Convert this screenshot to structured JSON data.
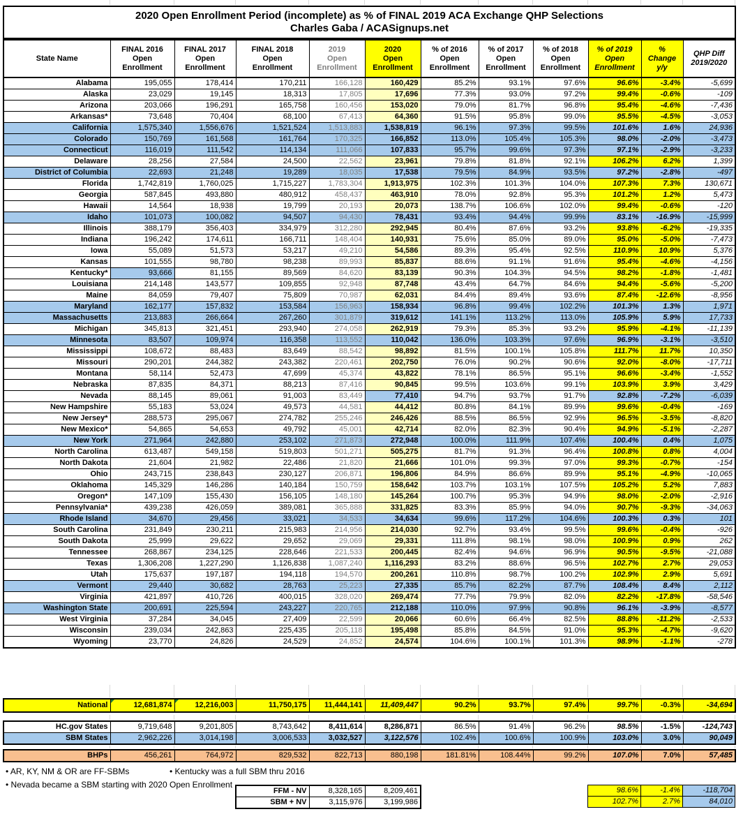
{
  "chart_data": {
    "type": "table",
    "title": "2020 Open Enrollment Period (incomplete) as % of FINAL 2019 ACA Exchange QHP Selections",
    "subtitle": "Charles Gaba / ACASignups.net",
    "columns": [
      "State Name",
      "FINAL 2016\nOpen\nEnrollment",
      "FINAL 2017\nOpen\nEnrollment",
      "FINAL 2018\nOpen\nEnrollment",
      "2019\nOpen\nEnrollment",
      "2020\nOpen\nEnrollment",
      "% of 2016\nOpen\nEnrollment",
      "% of 2017\nOpen\nEnrollment",
      "% of 2018\nOpen\nEnrollment",
      "% of 2019\nOpen\nEnrollment",
      "%\nChange\ny/y",
      "QHP Diff\n2019/2020"
    ],
    "rows": [
      {
        "name": "Alabama",
        "type": "ffm",
        "cells": [
          "195,055",
          "178,414",
          "170,211",
          "166,128",
          "160,429",
          "85.2%",
          "93.1%",
          "97.6%",
          "96.6%",
          "-3.4%",
          "-5,699"
        ]
      },
      {
        "name": "Alaska",
        "type": "ffm",
        "cells": [
          "23,029",
          "19,145",
          "18,313",
          "17,805",
          "17,696",
          "77.3%",
          "93.0%",
          "97.2%",
          "99.4%",
          "-0.6%",
          "-109"
        ]
      },
      {
        "name": "Arizona",
        "type": "ffm",
        "cells": [
          "203,066",
          "196,291",
          "165,758",
          "160,456",
          "153,020",
          "79.0%",
          "81.7%",
          "96.8%",
          "95.4%",
          "-4.6%",
          "-7,436"
        ]
      },
      {
        "name": "Arkansas*",
        "type": "ffm",
        "cells": [
          "73,648",
          "70,404",
          "68,100",
          "67,413",
          "64,360",
          "91.5%",
          "95.8%",
          "99.0%",
          "95.5%",
          "-4.5%",
          "-3,053"
        ]
      },
      {
        "name": "California",
        "type": "sbm",
        "cells": [
          "1,575,340",
          "1,556,676",
          "1,521,524",
          "1,513,883",
          "1,538,819",
          "96.1%",
          "97.3%",
          "99.5%",
          "101.6%",
          "1.6%",
          "24,936"
        ]
      },
      {
        "name": "Colorado",
        "type": "sbm",
        "cells": [
          "150,769",
          "161,568",
          "161,764",
          "170,325",
          "166,852",
          "113.0%",
          "105.4%",
          "105.3%",
          "98.0%",
          "-2.0%",
          "-3,473"
        ]
      },
      {
        "name": "Connecticut",
        "type": "sbm",
        "cells": [
          "116,019",
          "111,542",
          "114,134",
          "111,066",
          "107,833",
          "95.7%",
          "99.6%",
          "97.3%",
          "97.1%",
          "-2.9%",
          "-3,233"
        ]
      },
      {
        "name": "Delaware",
        "type": "ffm",
        "cells": [
          "28,256",
          "27,584",
          "24,500",
          "22,562",
          "23,961",
          "79.8%",
          "81.8%",
          "92.1%",
          "106.2%",
          "6.2%",
          "1,399"
        ]
      },
      {
        "name": "District of Columbia",
        "type": "sbm",
        "cells": [
          "22,693",
          "21,248",
          "19,289",
          "18,035",
          "17,538",
          "79.5%",
          "84.9%",
          "93.5%",
          "97.2%",
          "-2.8%",
          "-497"
        ]
      },
      {
        "name": "Florida",
        "type": "ffm",
        "cells": [
          "1,742,819",
          "1,760,025",
          "1,715,227",
          "1,783,304",
          "1,913,975",
          "102.3%",
          "101.3%",
          "104.0%",
          "107.3%",
          "7.3%",
          "130,671"
        ]
      },
      {
        "name": "Georgia",
        "type": "ffm",
        "cells": [
          "587,845",
          "493,880",
          "480,912",
          "458,437",
          "463,910",
          "78.0%",
          "92.8%",
          "95.3%",
          "101.2%",
          "1.2%",
          "5,473"
        ]
      },
      {
        "name": "Hawaii",
        "type": "ffm",
        "cells": [
          "14,564",
          "18,938",
          "19,799",
          "20,193",
          "20,073",
          "138.7%",
          "106.6%",
          "102.0%",
          "99.4%",
          "-0.6%",
          "-120"
        ]
      },
      {
        "name": "Idaho",
        "type": "sbm",
        "cells": [
          "101,073",
          "100,082",
          "94,507",
          "94,430",
          "78,431",
          "93.4%",
          "94.4%",
          "99.9%",
          "83.1%",
          "-16.9%",
          "-15,999"
        ]
      },
      {
        "name": "Illinois",
        "type": "ffm",
        "cells": [
          "388,179",
          "356,403",
          "334,979",
          "312,280",
          "292,945",
          "80.4%",
          "87.6%",
          "93.2%",
          "93.8%",
          "-6.2%",
          "-19,335"
        ]
      },
      {
        "name": "Indiana",
        "type": "ffm",
        "cells": [
          "196,242",
          "174,611",
          "166,711",
          "148,404",
          "140,931",
          "75.6%",
          "85.0%",
          "89.0%",
          "95.0%",
          "-5.0%",
          "-7,473"
        ]
      },
      {
        "name": "Iowa",
        "type": "ffm",
        "cells": [
          "55,089",
          "51,573",
          "53,217",
          "49,210",
          "54,586",
          "89.3%",
          "95.4%",
          "92.5%",
          "110.9%",
          "10.9%",
          "5,376"
        ]
      },
      {
        "name": "Kansas",
        "type": "ffm",
        "cells": [
          "101,555",
          "98,780",
          "98,238",
          "89,993",
          "85,837",
          "88.6%",
          "91.1%",
          "91.6%",
          "95.4%",
          "-4.6%",
          "-4,156"
        ]
      },
      {
        "name": "Kentucky*",
        "type": "ky",
        "cells": [
          "93,666",
          "81,155",
          "89,569",
          "84,620",
          "83,139",
          "90.3%",
          "104.3%",
          "94.5%",
          "98.2%",
          "-1.8%",
          "-1,481"
        ]
      },
      {
        "name": "Louisiana",
        "type": "ffm",
        "cells": [
          "214,148",
          "143,577",
          "109,855",
          "92,948",
          "87,748",
          "43.4%",
          "64.7%",
          "84.6%",
          "94.4%",
          "-5.6%",
          "-5,200"
        ]
      },
      {
        "name": "Maine",
        "type": "ffm",
        "cells": [
          "84,059",
          "79,407",
          "75,809",
          "70,987",
          "62,031",
          "84.4%",
          "89.4%",
          "93.6%",
          "87.4%",
          "-12.6%",
          "-8,956"
        ]
      },
      {
        "name": "Maryland",
        "type": "sbm",
        "cells": [
          "162,177",
          "157,832",
          "153,584",
          "156,963",
          "158,934",
          "96.8%",
          "99.4%",
          "102.2%",
          "101.3%",
          "1.3%",
          "1,971"
        ]
      },
      {
        "name": "Massachusetts",
        "type": "sbm",
        "cells": [
          "213,883",
          "266,664",
          "267,260",
          "301,879",
          "319,612",
          "141.1%",
          "113.2%",
          "113.0%",
          "105.9%",
          "5.9%",
          "17,733"
        ]
      },
      {
        "name": "Michigan",
        "type": "ffm",
        "cells": [
          "345,813",
          "321,451",
          "293,940",
          "274,058",
          "262,919",
          "79.3%",
          "85.3%",
          "93.2%",
          "95.9%",
          "-4.1%",
          "-11,139"
        ]
      },
      {
        "name": "Minnesota",
        "type": "sbm",
        "cells": [
          "83,507",
          "109,974",
          "116,358",
          "113,552",
          "110,042",
          "136.0%",
          "103.3%",
          "97.6%",
          "96.9%",
          "-3.1%",
          "-3,510"
        ]
      },
      {
        "name": "Mississippi",
        "type": "ffm",
        "cells": [
          "108,672",
          "88,483",
          "83,649",
          "88,542",
          "98,892",
          "81.5%",
          "100.1%",
          "105.8%",
          "111.7%",
          "11.7%",
          "10,350"
        ]
      },
      {
        "name": "Missouri",
        "type": "ffm",
        "cells": [
          "290,201",
          "244,382",
          "243,382",
          "220,461",
          "202,750",
          "76.0%",
          "90.2%",
          "90.6%",
          "92.0%",
          "-8.0%",
          "-17,711"
        ]
      },
      {
        "name": "Montana",
        "type": "ffm",
        "cells": [
          "58,114",
          "52,473",
          "47,699",
          "45,374",
          "43,822",
          "78.1%",
          "86.5%",
          "95.1%",
          "96.6%",
          "-3.4%",
          "-1,552"
        ]
      },
      {
        "name": "Nebraska",
        "type": "ffm",
        "cells": [
          "87,835",
          "84,371",
          "88,213",
          "87,416",
          "90,845",
          "99.5%",
          "103.6%",
          "99.1%",
          "103.9%",
          "3.9%",
          "3,429"
        ]
      },
      {
        "name": "Nevada",
        "type": "nv",
        "cells": [
          "88,145",
          "89,061",
          "91,003",
          "83,449",
          "77,410",
          "94.7%",
          "93.7%",
          "91.7%",
          "92.8%",
          "-7.2%",
          "-6,039"
        ]
      },
      {
        "name": "New Hampshire",
        "type": "ffm",
        "cells": [
          "55,183",
          "53,024",
          "49,573",
          "44,581",
          "44,412",
          "80.8%",
          "84.1%",
          "89.9%",
          "99.6%",
          "-0.4%",
          "-169"
        ]
      },
      {
        "name": "New Jersey*",
        "type": "ffm",
        "cells": [
          "288,573",
          "295,067",
          "274,782",
          "255,246",
          "246,426",
          "88.5%",
          "86.5%",
          "92.9%",
          "96.5%",
          "-3.5%",
          "-8,820"
        ]
      },
      {
        "name": "New Mexico*",
        "type": "ffm",
        "cells": [
          "54,865",
          "54,653",
          "49,792",
          "45,001",
          "42,714",
          "82.0%",
          "82.3%",
          "90.4%",
          "94.9%",
          "-5.1%",
          "-2,287"
        ]
      },
      {
        "name": "New York",
        "type": "sbm",
        "cells": [
          "271,964",
          "242,880",
          "253,102",
          "271,873",
          "272,948",
          "100.0%",
          "111.9%",
          "107.4%",
          "100.4%",
          "0.4%",
          "1,075"
        ]
      },
      {
        "name": "North Carolina",
        "type": "ffm",
        "cells": [
          "613,487",
          "549,158",
          "519,803",
          "501,271",
          "505,275",
          "81.7%",
          "91.3%",
          "96.4%",
          "100.8%",
          "0.8%",
          "4,004"
        ]
      },
      {
        "name": "North Dakota",
        "type": "ffm",
        "cells": [
          "21,604",
          "21,982",
          "22,486",
          "21,820",
          "21,666",
          "101.0%",
          "99.3%",
          "97.0%",
          "99.3%",
          "-0.7%",
          "-154"
        ]
      },
      {
        "name": "Ohio",
        "type": "ffm",
        "cells": [
          "243,715",
          "238,843",
          "230,127",
          "206,871",
          "196,806",
          "84.9%",
          "86.6%",
          "89.9%",
          "95.1%",
          "-4.9%",
          "-10,065"
        ]
      },
      {
        "name": "Oklahoma",
        "type": "ffm",
        "cells": [
          "145,329",
          "146,286",
          "140,184",
          "150,759",
          "158,642",
          "103.7%",
          "103.1%",
          "107.5%",
          "105.2%",
          "5.2%",
          "7,883"
        ]
      },
      {
        "name": "Oregon*",
        "type": "ffm",
        "cells": [
          "147,109",
          "155,430",
          "156,105",
          "148,180",
          "145,264",
          "100.7%",
          "95.3%",
          "94.9%",
          "98.0%",
          "-2.0%",
          "-2,916"
        ]
      },
      {
        "name": "Pennsylvania*",
        "type": "ffm",
        "cells": [
          "439,238",
          "426,059",
          "389,081",
          "365,888",
          "331,825",
          "83.3%",
          "85.9%",
          "94.0%",
          "90.7%",
          "-9.3%",
          "-34,063"
        ]
      },
      {
        "name": "Rhode Island",
        "type": "sbm",
        "cells": [
          "34,670",
          "29,456",
          "33,021",
          "34,533",
          "34,634",
          "99.6%",
          "117.2%",
          "104.6%",
          "100.3%",
          "0.3%",
          "101"
        ]
      },
      {
        "name": "South Carolina",
        "type": "ffm",
        "cells": [
          "231,849",
          "230,211",
          "215,983",
          "214,956",
          "214,030",
          "92.7%",
          "93.4%",
          "99.5%",
          "99.6%",
          "-0.4%",
          "-926"
        ]
      },
      {
        "name": "South Dakota",
        "type": "ffm",
        "cells": [
          "25,999",
          "29,622",
          "29,652",
          "29,069",
          "29,331",
          "111.8%",
          "98.1%",
          "98.0%",
          "100.9%",
          "0.9%",
          "262"
        ]
      },
      {
        "name": "Tennessee",
        "type": "ffm",
        "cells": [
          "268,867",
          "234,125",
          "228,646",
          "221,533",
          "200,445",
          "82.4%",
          "94.6%",
          "96.9%",
          "90.5%",
          "-9.5%",
          "-21,088"
        ]
      },
      {
        "name": "Texas",
        "type": "ffm",
        "cells": [
          "1,306,208",
          "1,227,290",
          "1,126,838",
          "1,087,240",
          "1,116,293",
          "83.2%",
          "88.6%",
          "96.5%",
          "102.7%",
          "2.7%",
          "29,053"
        ]
      },
      {
        "name": "Utah",
        "type": "ffm",
        "cells": [
          "175,637",
          "197,187",
          "194,118",
          "194,570",
          "200,261",
          "110.8%",
          "98.7%",
          "100.2%",
          "102.9%",
          "2.9%",
          "5,691"
        ]
      },
      {
        "name": "Vermont",
        "type": "sbm",
        "cells": [
          "29,440",
          "30,682",
          "28,763",
          "25,223",
          "27,335",
          "85.7%",
          "82.2%",
          "87.7%",
          "108.4%",
          "8.4%",
          "2,112"
        ]
      },
      {
        "name": "Virginia",
        "type": "ffm",
        "cells": [
          "421,897",
          "410,726",
          "400,015",
          "328,020",
          "269,474",
          "77.7%",
          "79.9%",
          "82.0%",
          "82.2%",
          "-17.8%",
          "-58,546"
        ]
      },
      {
        "name": "Washington State",
        "type": "sbm",
        "cells": [
          "200,691",
          "225,594",
          "243,227",
          "220,765",
          "212,188",
          "110.0%",
          "97.9%",
          "90.8%",
          "96.1%",
          "-3.9%",
          "-8,577"
        ]
      },
      {
        "name": "West Virginia",
        "type": "ffm",
        "cells": [
          "37,284",
          "34,045",
          "27,409",
          "22,599",
          "20,066",
          "60.6%",
          "66.4%",
          "82.5%",
          "88.8%",
          "-11.2%",
          "-2,533"
        ]
      },
      {
        "name": "Wisconsin",
        "type": "ffm",
        "cells": [
          "239,034",
          "242,863",
          "225,435",
          "205,118",
          "195,498",
          "85.8%",
          "84.5%",
          "91.0%",
          "95.3%",
          "-4.7%",
          "-9,620"
        ]
      },
      {
        "name": "Wyoming",
        "type": "ffm",
        "cells": [
          "23,770",
          "24,826",
          "24,529",
          "24,852",
          "24,574",
          "104.6%",
          "100.1%",
          "101.3%",
          "98.9%",
          "-1.1%",
          "-278"
        ]
      }
    ],
    "totals": [
      {
        "name": "National",
        "type": "nat",
        "cells": [
          "12,681,874",
          "12,216,003",
          "11,750,175",
          "11,444,141",
          "11,409,447",
          "90.2%",
          "93.7%",
          "97.4%",
          "99.7%",
          "-0.3%",
          "-34,694"
        ]
      },
      {
        "name": "HC.gov States",
        "type": "hc",
        "cells": [
          "9,719,648",
          "9,201,805",
          "8,743,642",
          "8,411,614",
          "8,286,871",
          "86.5%",
          "91.4%",
          "96.2%",
          "98.5%",
          "-1.5%",
          "-124,743"
        ]
      },
      {
        "name": "SBM States",
        "type": "sb",
        "cells": [
          "2,962,226",
          "3,014,198",
          "3,006,533",
          "3,032,527",
          "3,122,576",
          "102.4%",
          "100.6%",
          "100.9%",
          "103.0%",
          "3.0%",
          "90,049"
        ]
      },
      {
        "name": "BHPs",
        "type": "bhp",
        "cells": [
          "456,261",
          "764,972",
          "829,532",
          "822,713",
          "880,198",
          "181.81%",
          "108.44%",
          "99.2%",
          "107.0%",
          "7.0%",
          "57,485"
        ]
      }
    ],
    "bottom_rows": [
      {
        "label": "FFM - NV",
        "v2019": "8,328,165",
        "v2020": "8,209,461",
        "pct_2019": "98.6%",
        "chg": "-1.4%",
        "diff": "-118,704"
      },
      {
        "label": "SBM + NV",
        "v2019": "3,115,976",
        "v2020": "3,199,986",
        "pct_2019": "102.7%",
        "chg": "2.7%",
        "diff": "84,010"
      }
    ],
    "footnotes": [
      "• AR, KY, NM & OR are FF-SBMs",
      "• Kentucky was a full SBM thru 2016",
      "• Nevada became a SBM starting with 2020 Open Enrollment"
    ],
    "colors": {
      "sbm_row_blue": "#A6CAEC",
      "highlight_yellow": "#FFFF00",
      "pale_yellow_2020": "#FFFFBE",
      "bhp_orange": "#F9BF8F",
      "dim_2019_text": "#7F7F7F"
    },
    "layout_hints": {
      "grid": "on",
      "legend_position": "none"
    }
  }
}
